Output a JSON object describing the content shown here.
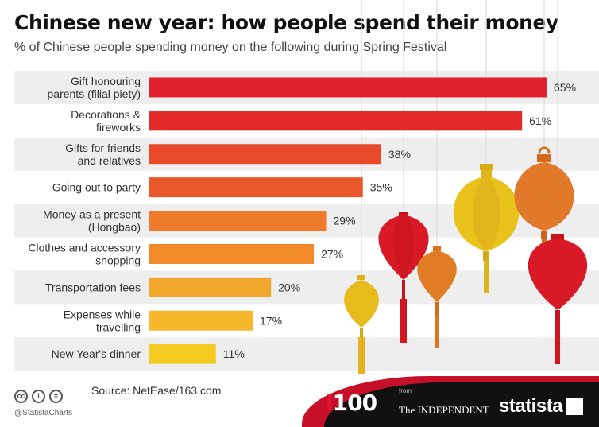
{
  "title": "Chinese new year: how people spend their money",
  "subtitle": "% of Chinese people spending money on the following during Spring Festival",
  "chart_data": {
    "type": "bar",
    "orientation": "horizontal",
    "categories": [
      [
        "Gift honouring",
        "parents (filial piety)"
      ],
      [
        "Decorations &",
        "fireworks"
      ],
      [
        "Gifts for friends",
        "and relatives"
      ],
      [
        "Going out to party"
      ],
      [
        "Money as a present",
        "(Hongbao)"
      ],
      [
        "Clothes and accessory",
        "shopping"
      ],
      [
        "Transportation fees"
      ],
      [
        "Expenses while",
        "travelling"
      ],
      [
        "New Year's dinner"
      ]
    ],
    "values": [
      65,
      61,
      38,
      35,
      29,
      27,
      20,
      17,
      11
    ],
    "value_labels": [
      "65%",
      "61%",
      "38%",
      "35%",
      "29%",
      "27%",
      "20%",
      "17%",
      "11%"
    ],
    "bar_colors": [
      "#e0202d",
      "#e32b2a",
      "#e84a2a",
      "#ea572a",
      "#ee7a2b",
      "#f08a2a",
      "#f3a62c",
      "#f5b82a",
      "#f3cb22"
    ],
    "row_shading": "alternating light gray",
    "xlim": [
      0,
      65
    ],
    "grid": false,
    "legend": "none"
  },
  "footer": {
    "handle": "@StatistaCharts",
    "source": "Source: NetEase/163.com",
    "i100_prefix": "i",
    "i100_suffix": "100",
    "from": "from",
    "independent": "The INDEPENDENT",
    "statista": "statista",
    "license_icons": [
      "cc-icon",
      "by-icon",
      "nd-icon"
    ]
  }
}
